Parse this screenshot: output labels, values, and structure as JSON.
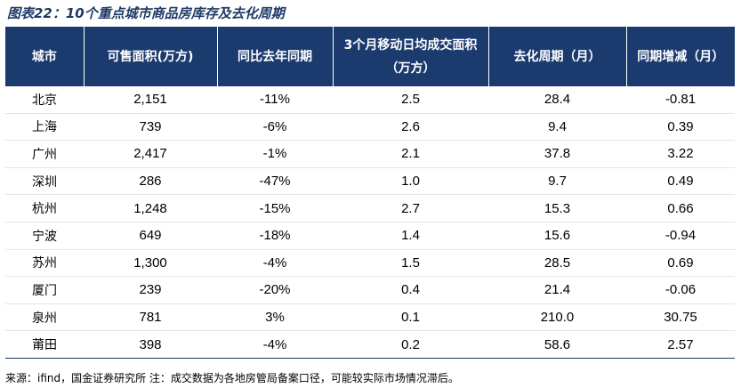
{
  "title": "图表22：10个重点城市商品房库存及去化周期",
  "table": {
    "header": [
      "城市",
      "可售面积(万方)",
      "同比去年同期",
      "3个月移动日均成交面积（万方）",
      "去化周期（月）",
      "同期增减（月）"
    ],
    "rows": [
      [
        "北京",
        "2,151",
        "-11%",
        "2.5",
        "28.4",
        "-0.81"
      ],
      [
        "上海",
        "739",
        "-6%",
        "2.6",
        "9.4",
        "0.39"
      ],
      [
        "广州",
        "2,417",
        "-1%",
        "2.1",
        "37.8",
        "3.22"
      ],
      [
        "深圳",
        "286",
        "-47%",
        "1.0",
        "9.7",
        "0.49"
      ],
      [
        "杭州",
        "1,248",
        "-15%",
        "2.7",
        "15.3",
        "0.66"
      ],
      [
        "宁波",
        "649",
        "-18%",
        "1.4",
        "15.6",
        "-0.94"
      ],
      [
        "苏州",
        "1,300",
        "-4%",
        "1.5",
        "28.5",
        "0.69"
      ],
      [
        "厦门",
        "239",
        "-20%",
        "0.4",
        "21.4",
        "-0.06"
      ],
      [
        "泉州",
        "781",
        "3%",
        "0.1",
        "210.0",
        "30.75"
      ],
      [
        "莆田",
        "398",
        "-4%",
        "0.2",
        "58.6",
        "2.57"
      ]
    ]
  },
  "source": "来源：ifind，国金证券研究所 注：成交数据为各地房管局备案口径，可能较实际市场情况滞后。"
}
